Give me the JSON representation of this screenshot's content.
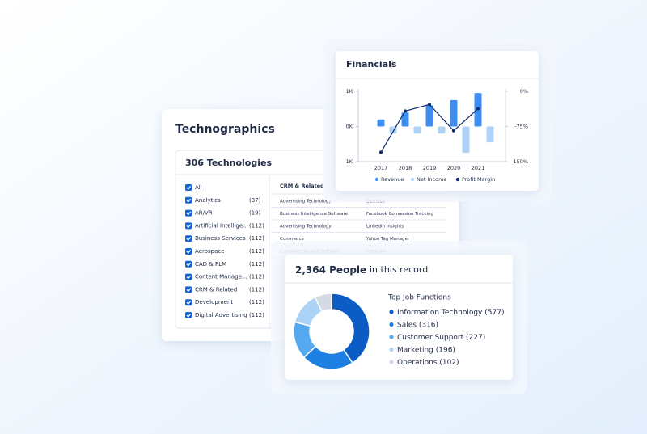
{
  "technographics": {
    "title": "Technographics",
    "subtitle": "306 Technologies",
    "filters": [
      {
        "label": "All",
        "count": null
      },
      {
        "label": "Analytics",
        "count": "(37)"
      },
      {
        "label": "AR/VR",
        "count": "(19)"
      },
      {
        "label": "Artificial Intellige...",
        "count": "(112)"
      },
      {
        "label": "Business Services",
        "count": "(112)"
      },
      {
        "label": "Aerospace",
        "count": "(112)"
      },
      {
        "label": "CAD & PLM",
        "count": "(112)"
      },
      {
        "label": "Content Manage...",
        "count": "(112)"
      },
      {
        "label": "CRM & Related",
        "count": "(112)"
      },
      {
        "label": "Development",
        "count": "(112)"
      },
      {
        "label": "Digital Advertising",
        "count": "(112)"
      }
    ],
    "table": {
      "header": "CRM & Related",
      "rows": [
        [
          "Advertising Technology",
          "Demdex"
        ],
        [
          "Business Intelligence Software",
          "Facebook Conversion Tracking"
        ],
        [
          "Advertising Technology",
          "LinkedIn Insights"
        ],
        [
          "Commerce",
          "Yahoo Tag Manager"
        ],
        [
          "Customer Service Software",
          "Intercom"
        ]
      ]
    }
  },
  "chart_data": [
    {
      "type": "bar",
      "title": "Financials",
      "categories": [
        "2017",
        "2018",
        "2019",
        "2020",
        "2021"
      ],
      "series": [
        {
          "name": "Revenue",
          "color": "#3d8ef0",
          "values": [
            200,
            400,
            600,
            750,
            950
          ]
        },
        {
          "name": "Net Income",
          "color": "#aed3f7",
          "values": [
            -200,
            -200,
            -200,
            -750,
            -450
          ]
        },
        {
          "name": "Profit Margin",
          "color": "#0d2a6b",
          "type": "line",
          "axis": "y2",
          "values": [
            -130,
            -42,
            -28,
            -84,
            -37
          ]
        }
      ],
      "ylim": [
        -1000,
        1000
      ],
      "yticks": [
        {
          "value": -1000,
          "label": "-1K"
        },
        {
          "value": 0,
          "label": "0K"
        },
        {
          "value": 1000,
          "label": "1K"
        }
      ],
      "y2lim": [
        -150,
        0
      ],
      "y2ticks": [
        {
          "value": -150,
          "label": "-150%"
        },
        {
          "value": -75,
          "label": "-75%"
        },
        {
          "value": 0,
          "label": "0%"
        }
      ],
      "legend": "bottom"
    },
    {
      "type": "donut",
      "title": "2,364 People",
      "subtitle": "in this record",
      "legend_title": "Top Job Functions",
      "categories": [
        "Information Technology",
        "Sales",
        "Customer Support",
        "Marketing",
        "Operations"
      ],
      "values": [
        577,
        316,
        227,
        196,
        102
      ],
      "value_labels": [
        "(577)",
        "(316)",
        "(227)",
        "(196)",
        "(102)"
      ],
      "colors": [
        "#0b5cc4",
        "#1f80e3",
        "#55a9f1",
        "#acd2f6",
        "#d3dae4"
      ]
    }
  ]
}
